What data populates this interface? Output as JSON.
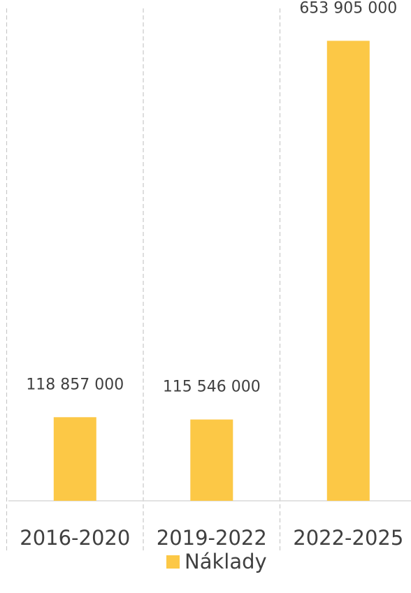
{
  "chart_data": {
    "type": "bar",
    "categories": [
      "2016-2020",
      "2019-2022",
      "2022-2025"
    ],
    "series": [
      {
        "name": "Náklady",
        "values": [
          118857000,
          115546000,
          653905000
        ],
        "value_labels": [
          "118 857 000",
          "115 546 000",
          "653 905 000"
        ],
        "color": "#FCC846"
      }
    ],
    "ylim": [
      0,
      700000000
    ],
    "grid": "vertical-dashed",
    "legend": "bottom-center"
  }
}
